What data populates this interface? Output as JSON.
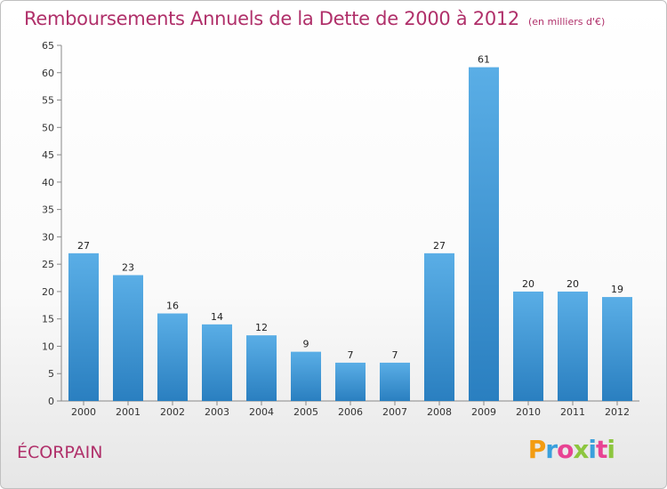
{
  "title": "Remboursements Annuels de la Dette de 2000 à 2012",
  "subtitle": "(en milliers d'€)",
  "commune": "ÉCORPAIN",
  "logo": {
    "text": "Proxiti",
    "colors": [
      "#f39c12",
      "#3aa0dc",
      "#e84393",
      "#8dc63f",
      "#3aa0dc",
      "#e84393",
      "#8dc63f"
    ]
  },
  "chart_data": {
    "type": "bar",
    "title": "Remboursements Annuels de la Dette de 2000 à 2012",
    "subtitle": "(en milliers d'€)",
    "categories": [
      "2000",
      "2001",
      "2002",
      "2003",
      "2004",
      "2005",
      "2006",
      "2007",
      "2008",
      "2009",
      "2010",
      "2011",
      "2012"
    ],
    "values": [
      27,
      23,
      16,
      14,
      12,
      9,
      7,
      7,
      27,
      61,
      20,
      20,
      19
    ],
    "ylim": [
      0,
      65
    ],
    "yticks": [
      0,
      5,
      10,
      15,
      20,
      25,
      30,
      35,
      40,
      45,
      50,
      55,
      60,
      65
    ],
    "grid": false,
    "bar_color_top": "#5aaee6",
    "bar_color_bottom": "#2a7fc0"
  }
}
